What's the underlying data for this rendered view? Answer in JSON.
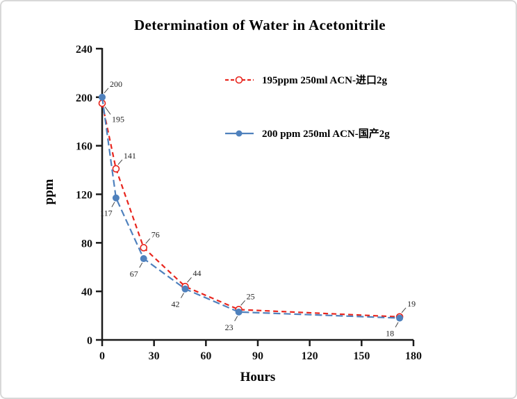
{
  "window": {
    "background": "#ffffff",
    "frame_border_color": "#d8d8d8"
  },
  "chart_data": {
    "type": "line",
    "title": "Determination of Water in Acetonitrile",
    "xlabel": "Hours",
    "ylabel": "ppm",
    "xlim": [
      0,
      180
    ],
    "xtick_step": 30,
    "xtick_labels": [
      "0",
      "30",
      "60",
      "90",
      "120",
      "150",
      "180"
    ],
    "ylim": [
      0,
      240
    ],
    "ytick_step": 40,
    "ytick_labels": [
      "0",
      "40",
      "80",
      "120",
      "160",
      "200",
      "240"
    ],
    "grid": false,
    "data_labels": true,
    "legend_position": "upper-center-inside",
    "x": [
      0,
      8,
      24,
      48,
      79,
      172
    ],
    "series": [
      {
        "name": "195ppm  250ml ACN-进口2g",
        "color": "#e8251d",
        "marker": "open-circle",
        "line_style": "dashed",
        "values": [
          195,
          141,
          76,
          44,
          25,
          19
        ]
      },
      {
        "name": "200 ppm 250ml ACN-国产2g",
        "color": "#4f81bd",
        "marker": "filled-circle",
        "line_style": "dashed",
        "values": [
          200,
          117,
          67,
          42,
          23,
          18
        ]
      }
    ]
  }
}
